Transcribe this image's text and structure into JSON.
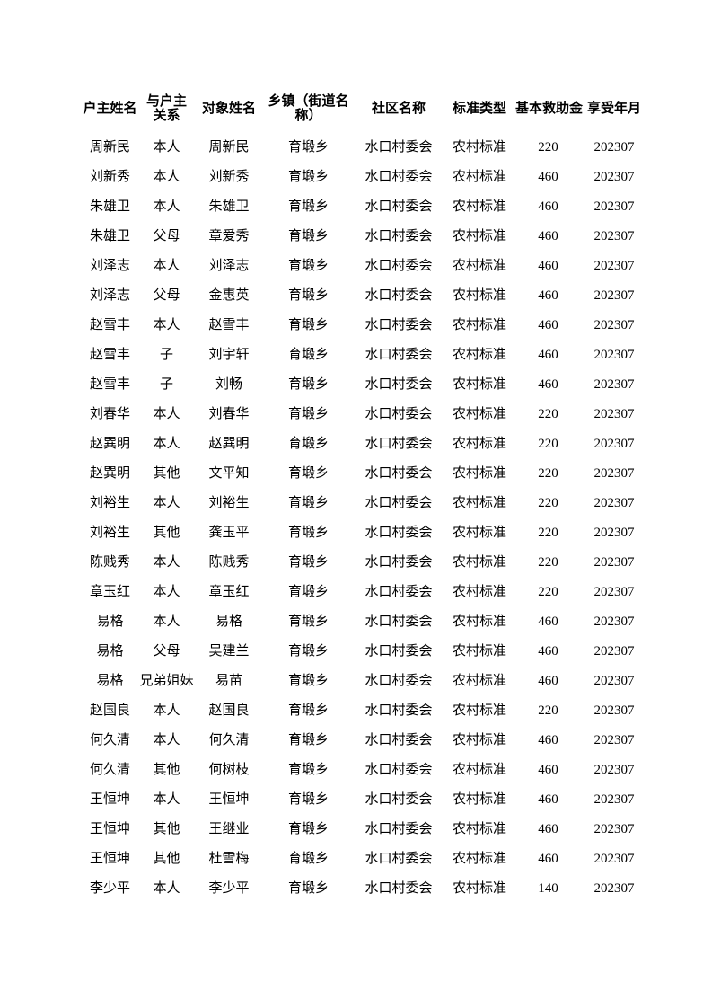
{
  "page": {
    "background_color": "#ffffff",
    "text_color": "#000000"
  },
  "table": {
    "headers": [
      {
        "label": "户主姓名"
      },
      {
        "line1": "与户主",
        "line2": "关系"
      },
      {
        "label": "对象姓名"
      },
      {
        "line1": "乡镇（街道名",
        "line2": "称）"
      },
      {
        "label": "社区名称"
      },
      {
        "label": "标准类型"
      },
      {
        "label": "基本救助金"
      },
      {
        "label": "享受年月"
      }
    ],
    "column_keys": [
      "household-head-name",
      "relation-to-head",
      "person-name",
      "township",
      "community",
      "standard-type",
      "basic-subsidy",
      "period"
    ],
    "rows": [
      [
        "周新民",
        "本人",
        "周新民",
        "育塅乡",
        "水口村委会",
        "农村标准",
        "220",
        "202307"
      ],
      [
        "刘新秀",
        "本人",
        "刘新秀",
        "育塅乡",
        "水口村委会",
        "农村标准",
        "460",
        "202307"
      ],
      [
        "朱雄卫",
        "本人",
        "朱雄卫",
        "育塅乡",
        "水口村委会",
        "农村标准",
        "460",
        "202307"
      ],
      [
        "朱雄卫",
        "父母",
        "章爱秀",
        "育塅乡",
        "水口村委会",
        "农村标准",
        "460",
        "202307"
      ],
      [
        "刘泽志",
        "本人",
        "刘泽志",
        "育塅乡",
        "水口村委会",
        "农村标准",
        "460",
        "202307"
      ],
      [
        "刘泽志",
        "父母",
        "金惠英",
        "育塅乡",
        "水口村委会",
        "农村标准",
        "460",
        "202307"
      ],
      [
        "赵雪丰",
        "本人",
        "赵雪丰",
        "育塅乡",
        "水口村委会",
        "农村标准",
        "460",
        "202307"
      ],
      [
        "赵雪丰",
        "子",
        "刘宇轩",
        "育塅乡",
        "水口村委会",
        "农村标准",
        "460",
        "202307"
      ],
      [
        "赵雪丰",
        "子",
        "刘畅",
        "育塅乡",
        "水口村委会",
        "农村标准",
        "460",
        "202307"
      ],
      [
        "刘春华",
        "本人",
        "刘春华",
        "育塅乡",
        "水口村委会",
        "农村标准",
        "220",
        "202307"
      ],
      [
        "赵巽明",
        "本人",
        "赵巽明",
        "育塅乡",
        "水口村委会",
        "农村标准",
        "220",
        "202307"
      ],
      [
        "赵巽明",
        "其他",
        "文平知",
        "育塅乡",
        "水口村委会",
        "农村标准",
        "220",
        "202307"
      ],
      [
        "刘裕生",
        "本人",
        "刘裕生",
        "育塅乡",
        "水口村委会",
        "农村标准",
        "220",
        "202307"
      ],
      [
        "刘裕生",
        "其他",
        "龚玉平",
        "育塅乡",
        "水口村委会",
        "农村标准",
        "220",
        "202307"
      ],
      [
        "陈贱秀",
        "本人",
        "陈贱秀",
        "育塅乡",
        "水口村委会",
        "农村标准",
        "220",
        "202307"
      ],
      [
        "章玉红",
        "本人",
        "章玉红",
        "育塅乡",
        "水口村委会",
        "农村标准",
        "220",
        "202307"
      ],
      [
        "易格",
        "本人",
        "易格",
        "育塅乡",
        "水口村委会",
        "农村标准",
        "460",
        "202307"
      ],
      [
        "易格",
        "父母",
        "吴建兰",
        "育塅乡",
        "水口村委会",
        "农村标准",
        "460",
        "202307"
      ],
      [
        "易格",
        "兄弟姐妹",
        "易苗",
        "育塅乡",
        "水口村委会",
        "农村标准",
        "460",
        "202307"
      ],
      [
        "赵国良",
        "本人",
        "赵国良",
        "育塅乡",
        "水口村委会",
        "农村标准",
        "220",
        "202307"
      ],
      [
        "何久清",
        "本人",
        "何久清",
        "育塅乡",
        "水口村委会",
        "农村标准",
        "460",
        "202307"
      ],
      [
        "何久清",
        "其他",
        "何树枝",
        "育塅乡",
        "水口村委会",
        "农村标准",
        "460",
        "202307"
      ],
      [
        "王恒坤",
        "本人",
        "王恒坤",
        "育塅乡",
        "水口村委会",
        "农村标准",
        "460",
        "202307"
      ],
      [
        "王恒坤",
        "其他",
        "王继业",
        "育塅乡",
        "水口村委会",
        "农村标准",
        "460",
        "202307"
      ],
      [
        "王恒坤",
        "其他",
        "杜雪梅",
        "育塅乡",
        "水口村委会",
        "农村标准",
        "460",
        "202307"
      ],
      [
        "李少平",
        "本人",
        "李少平",
        "育塅乡",
        "水口村委会",
        "农村标准",
        "140",
        "202307"
      ]
    ]
  }
}
